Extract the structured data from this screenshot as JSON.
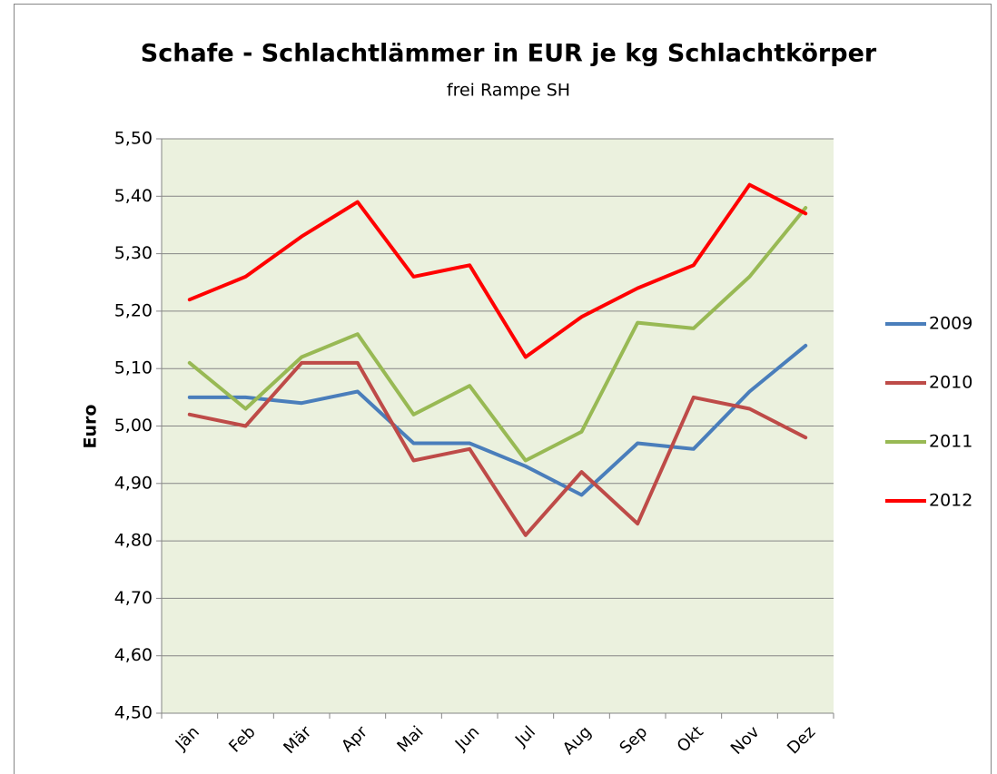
{
  "chart_data": {
    "type": "line",
    "title": "Schafe - Schlachtlämmer in EUR je kg Schlachtkörper",
    "subtitle": "frei Rampe SH",
    "y_label": "Euro",
    "categories": [
      "Jän",
      "Feb",
      "Mär",
      "Apr",
      "Mai",
      "Jun",
      "Jul",
      "Aug",
      "Sep",
      "Okt",
      "Nov",
      "Dez"
    ],
    "series": [
      {
        "name": "2009",
        "color": "#4a7ebb",
        "values": [
          5.05,
          5.05,
          5.04,
          5.06,
          4.97,
          4.97,
          4.93,
          4.88,
          4.97,
          4.96,
          5.06,
          5.14
        ]
      },
      {
        "name": "2010",
        "color": "#be4b48",
        "values": [
          5.02,
          5.0,
          5.11,
          5.11,
          4.94,
          4.96,
          4.81,
          4.92,
          4.83,
          5.05,
          5.03,
          4.98
        ]
      },
      {
        "name": "2011",
        "color": "#98b954",
        "values": [
          5.11,
          5.03,
          5.12,
          5.16,
          5.02,
          5.07,
          4.94,
          4.99,
          5.18,
          5.17,
          5.26,
          5.38
        ]
      },
      {
        "name": "2012",
        "color": "#ff0000",
        "values": [
          5.22,
          5.26,
          5.33,
          5.39,
          5.26,
          5.28,
          5.12,
          5.19,
          5.24,
          5.28,
          5.42,
          5.37
        ]
      }
    ],
    "ylim": [
      4.5,
      5.5
    ],
    "yticks": [
      {
        "value": 4.5,
        "label": "4,50"
      },
      {
        "value": 4.6,
        "label": "4,60"
      },
      {
        "value": 4.7,
        "label": "4,70"
      },
      {
        "value": 4.8,
        "label": "4,80"
      },
      {
        "value": 4.9,
        "label": "4,90"
      },
      {
        "value": 5.0,
        "label": "5,00"
      },
      {
        "value": 5.1,
        "label": "5,10"
      },
      {
        "value": 5.2,
        "label": "5,20"
      },
      {
        "value": 5.3,
        "label": "5,30"
      },
      {
        "value": 5.4,
        "label": "5,40"
      },
      {
        "value": 5.5,
        "label": "5,50"
      }
    ],
    "grid": true,
    "legend": "right",
    "plot_background": "#ebf1de"
  }
}
